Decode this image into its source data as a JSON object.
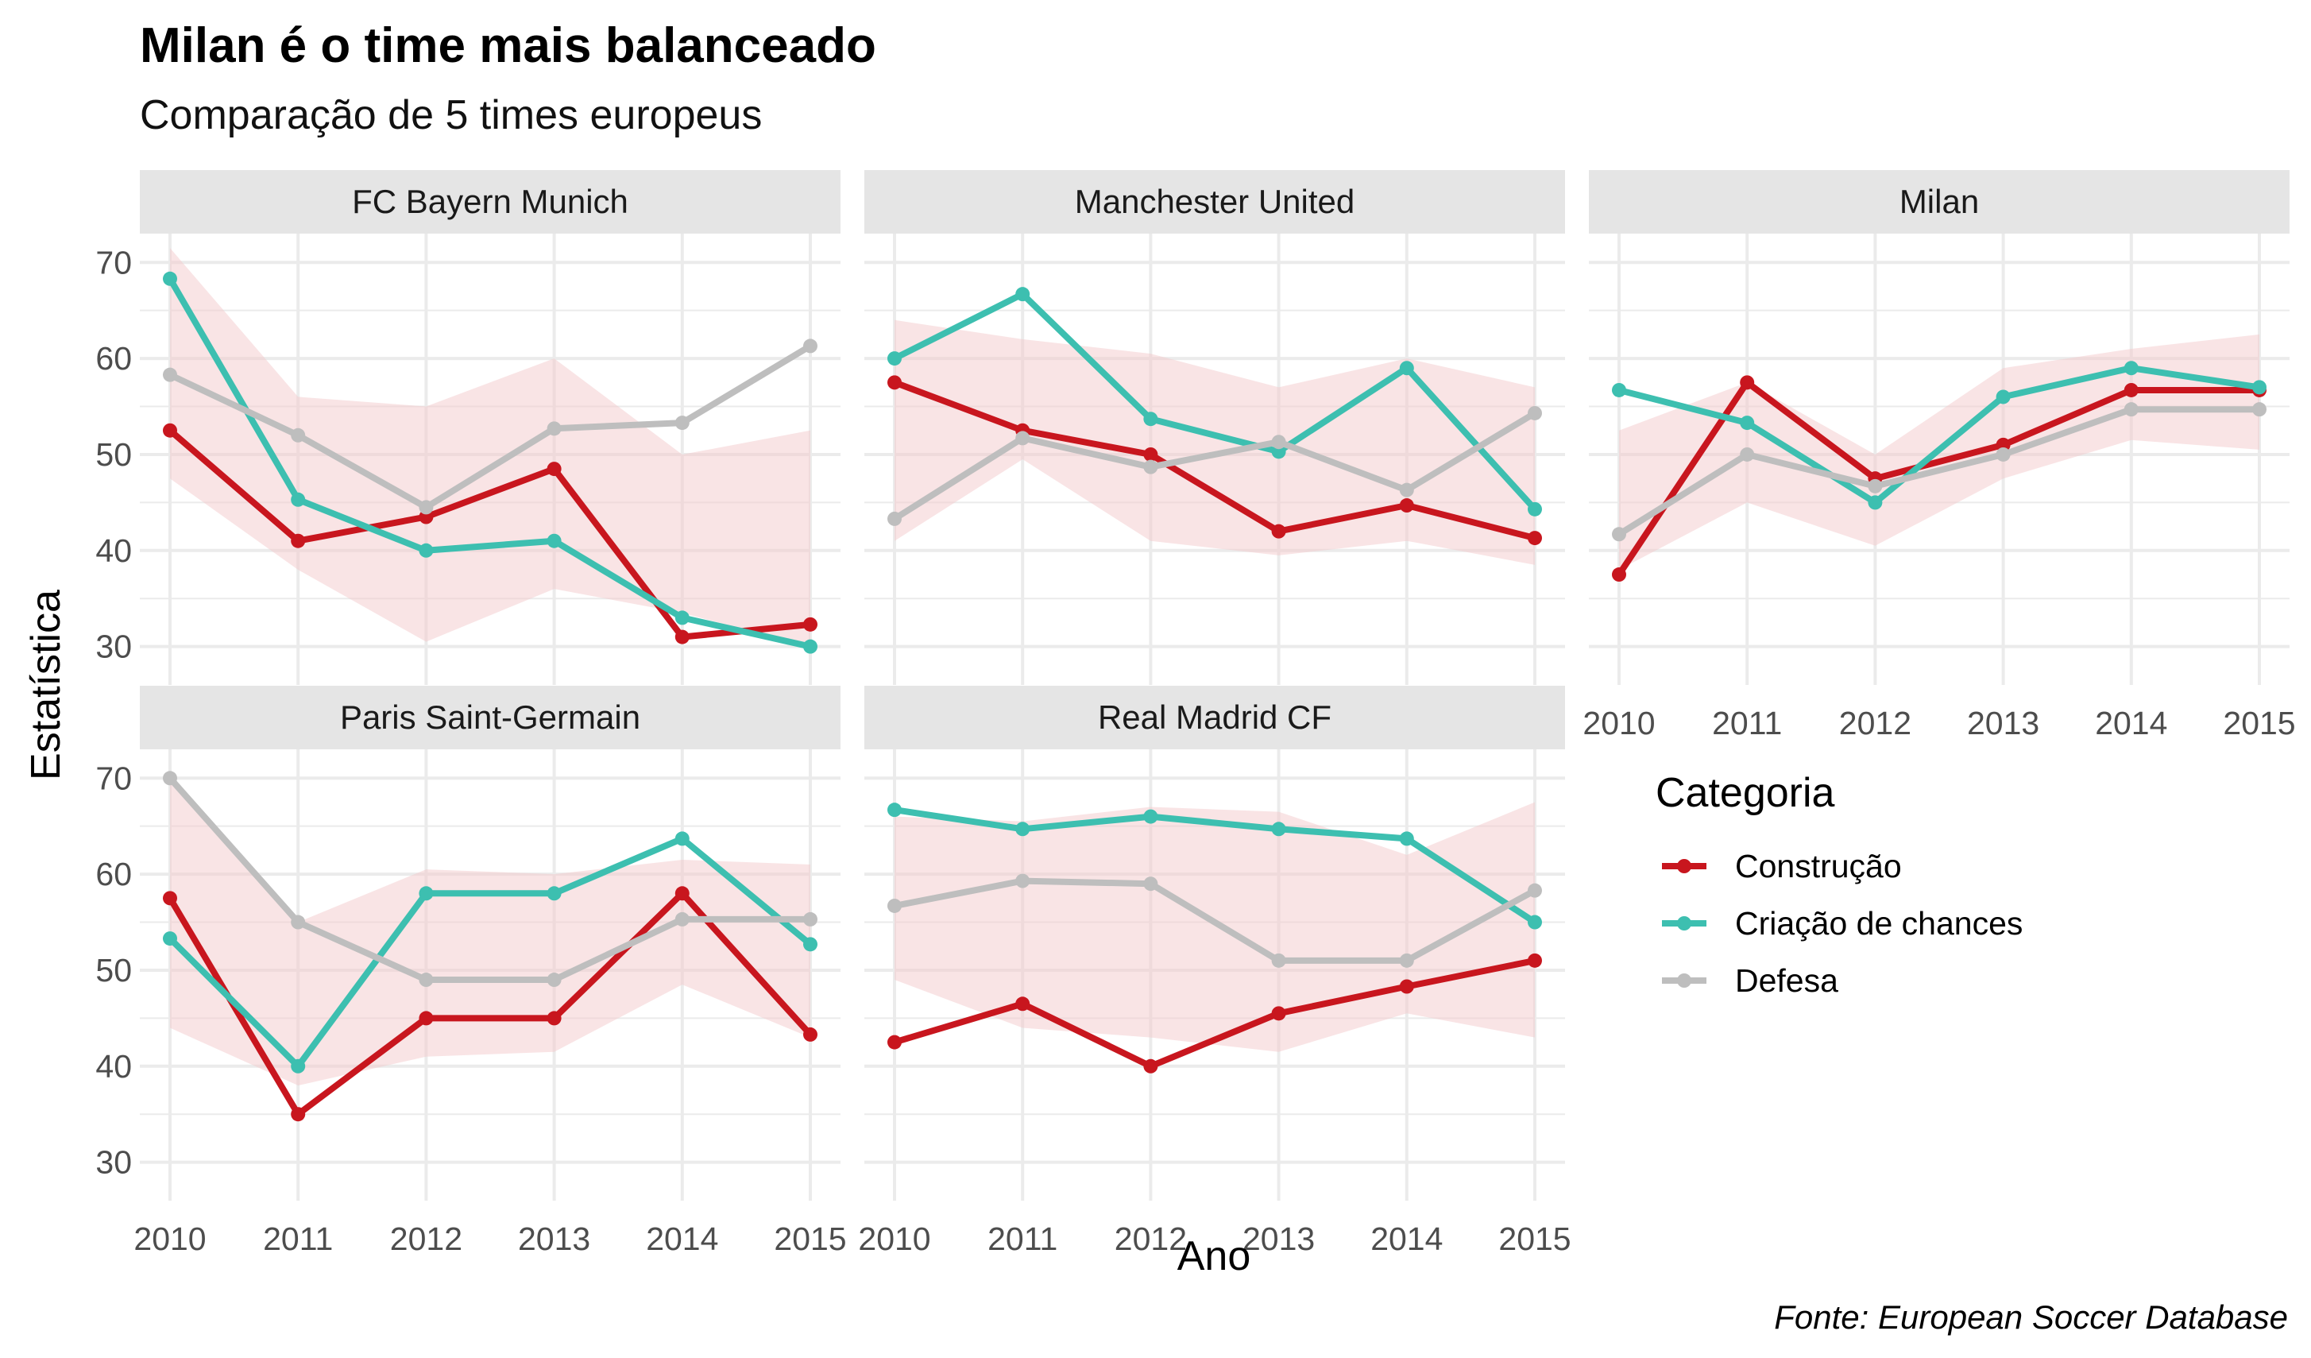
{
  "title": "Milan é o time mais balanceado",
  "subtitle": "Comparação de 5 times europeus",
  "caption": "Fonte: European Soccer Database",
  "colors": {
    "construcao": "#C8161E",
    "criacao": "#3DBFB0",
    "defesa": "#BEBEBE",
    "ribbon": "#F4CACC",
    "strip": "#E5E5E5",
    "grid": "#EBEBEB"
  },
  "chart_data": {
    "type": "line",
    "xlabel": "Ano",
    "ylabel": "Estatística",
    "x": [
      2010,
      2011,
      2012,
      2013,
      2014,
      2015
    ],
    "ylim": [
      26,
      73
    ],
    "yticks": [
      30,
      40,
      50,
      60,
      70
    ],
    "grid": true,
    "legend": {
      "title": "Categoria",
      "placement": "right",
      "entries": [
        "Construção",
        "Criação de chances",
        "Defesa"
      ]
    },
    "facets": [
      {
        "name": "FC Bayern Munich",
        "series": [
          {
            "name": "Construção",
            "values": [
              52.5,
              41,
              43.5,
              48.5,
              31,
              32.3
            ]
          },
          {
            "name": "Criação de chances",
            "values": [
              68.3,
              45.3,
              40,
              41,
              33,
              30
            ]
          },
          {
            "name": "Defesa",
            "values": [
              58.3,
              52,
              44.5,
              52.7,
              53.3,
              61.3
            ]
          }
        ],
        "ribbon_lower": [
          47.5,
          38,
          30.5,
          36,
          33.5,
          30
        ],
        "ribbon_upper": [
          71.5,
          56,
          55,
          60,
          50,
          52.5
        ]
      },
      {
        "name": "Manchester United",
        "series": [
          {
            "name": "Construção",
            "values": [
              57.5,
              52.5,
              50,
              42,
              44.7,
              41.3
            ]
          },
          {
            "name": "Criação de chances",
            "values": [
              60,
              66.7,
              53.7,
              50.3,
              59,
              44.3
            ]
          },
          {
            "name": "Defesa",
            "values": [
              43.3,
              51.7,
              48.7,
              51.3,
              46.3,
              54.3
            ]
          }
        ],
        "ribbon_lower": [
          41,
          49.5,
          41,
          39.5,
          41,
          38.5
        ],
        "ribbon_upper": [
          64,
          62,
          60.5,
          57,
          60,
          57
        ]
      },
      {
        "name": "Milan",
        "series": [
          {
            "name": "Construção",
            "values": [
              37.5,
              57.5,
              47.5,
              51,
              56.7,
              56.7
            ]
          },
          {
            "name": "Criação de chances",
            "values": [
              56.7,
              53.3,
              45,
              56,
              59,
              57
            ]
          },
          {
            "name": "Defesa",
            "values": [
              41.7,
              50,
              46.7,
              50,
              54.7,
              54.7
            ]
          }
        ],
        "ribbon_lower": [
          38,
          45,
          40.5,
          47.5,
          51.5,
          50.5
        ],
        "ribbon_upper": [
          52.5,
          57.5,
          50,
          59,
          61,
          62.5
        ]
      },
      {
        "name": "Paris Saint-Germain",
        "series": [
          {
            "name": "Construção",
            "values": [
              57.5,
              35,
              45,
              45,
              58,
              43.3
            ]
          },
          {
            "name": "Criação de chances",
            "values": [
              53.3,
              40,
              58,
              58,
              63.7,
              52.7
            ]
          },
          {
            "name": "Defesa",
            "values": [
              70,
              55,
              49,
              49,
              55.3,
              55.3
            ]
          }
        ],
        "ribbon_lower": [
          44,
          38,
          41,
          41.5,
          48.5,
          43
        ],
        "ribbon_upper": [
          70,
          55,
          60.5,
          60,
          61.5,
          61
        ]
      },
      {
        "name": "Real Madrid CF",
        "series": [
          {
            "name": "Construção",
            "values": [
              42.5,
              46.5,
              40,
              45.5,
              48.3,
              51
            ]
          },
          {
            "name": "Criação de chances",
            "values": [
              66.7,
              64.7,
              66,
              64.7,
              63.7,
              55
            ]
          },
          {
            "name": "Defesa",
            "values": [
              56.7,
              59.3,
              59,
              51,
              51,
              58.3
            ]
          }
        ],
        "ribbon_lower": [
          49,
          44,
          43,
          41.5,
          45.5,
          43
        ],
        "ribbon_upper": [
          66,
          65.5,
          67,
          66.5,
          62,
          67.5
        ]
      }
    ]
  }
}
